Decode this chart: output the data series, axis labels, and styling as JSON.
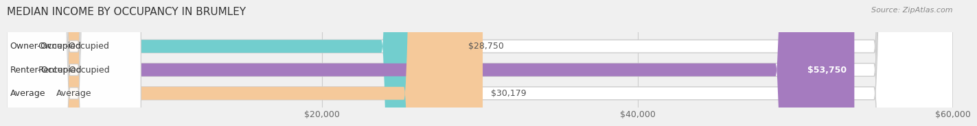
{
  "title": "MEDIAN INCOME BY OCCUPANCY IN BRUMLEY",
  "source": "Source: ZipAtlas.com",
  "categories": [
    "Owner-Occupied",
    "Renter-Occupied",
    "Average"
  ],
  "values": [
    28750,
    53750,
    30179
  ],
  "labels": [
    "$28,750",
    "$53,750",
    "$30,179"
  ],
  "bar_colors": [
    "#72cece",
    "#a57bbf",
    "#f5c99a"
  ],
  "bar_edge_colors": [
    "#72cece",
    "#a57bbf",
    "#f5c99a"
  ],
  "background_color": "#f0f0f0",
  "bar_bg_color": "#e8e8e8",
  "xlim": [
    0,
    60000
  ],
  "xticks": [
    0,
    20000,
    40000,
    60000
  ],
  "xticklabels": [
    "",
    "$20,000",
    "$40,000",
    "$60,000"
  ],
  "bar_height": 0.55,
  "label_fontsize": 9,
  "title_fontsize": 11,
  "tick_fontsize": 9,
  "source_fontsize": 8
}
